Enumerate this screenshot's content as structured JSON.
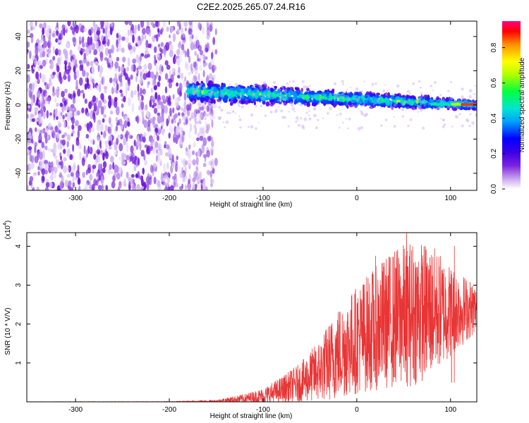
{
  "title": "C2E2.2025.265.07.24.R16",
  "chart_data": [
    {
      "type": "heatmap",
      "title": "C2E2.2025.265.07.24.R16",
      "xlabel": "Height of straight line (km)",
      "ylabel": "Frequency (Hz)",
      "xlim": [
        -352,
        128
      ],
      "ylim": [
        -50,
        49
      ],
      "xticks": [
        -300,
        -200,
        -100,
        0,
        100
      ],
      "yticks": [
        -40,
        -20,
        0,
        20,
        40
      ],
      "noise_region_end": -160,
      "signal_band": {
        "x_start": -180,
        "x_end": 128,
        "freq_center_start": 8,
        "freq_center_end": 0
      },
      "colorbar": {
        "label": "Normalized spectral amplitude",
        "range": [
          0,
          0.95
        ],
        "ticks": [
          0.0,
          0.2,
          0.4,
          0.6,
          0.8
        ],
        "tick_labels": [
          "0.0",
          "0.2",
          "0.4",
          "0.6",
          "0.8"
        ],
        "colormap": [
          "#ffffff",
          "#c9a7ee",
          "#7b22e0",
          "#3a00e6",
          "#0000ff",
          "#00a0ff",
          "#00e5d0",
          "#00ff40",
          "#b0ff00",
          "#ffff00",
          "#ff9000",
          "#ff0000",
          "#ff0080"
        ]
      }
    },
    {
      "type": "line",
      "title": "",
      "xlabel": "Height of straight line (km)",
      "ylabel": "SNR (10 * V/V)",
      "scale_label": "(x10",
      "scale_exponent": "4",
      "xlim": [
        -352,
        128
      ],
      "ylim": [
        0,
        4.35
      ],
      "xticks": [
        -300,
        -200,
        -100,
        0,
        100
      ],
      "yticks": [
        1,
        2,
        3,
        4
      ],
      "color": "#e83535",
      "envelope": {
        "x": [
          -352,
          -200,
          -150,
          -120,
          -100,
          -80,
          -60,
          -40,
          -20,
          0,
          20,
          40,
          60,
          80,
          100,
          128
        ],
        "mean": [
          0.0,
          0.0,
          0.02,
          0.08,
          0.15,
          0.3,
          0.5,
          0.8,
          1.25,
          1.6,
          1.9,
          2.15,
          2.3,
          2.35,
          2.35,
          2.4
        ],
        "amp": [
          0.005,
          0.01,
          0.03,
          0.12,
          0.2,
          0.35,
          0.5,
          0.8,
          1.2,
          1.4,
          1.6,
          1.8,
          1.9,
          1.7,
          1.2,
          0.6
        ]
      },
      "peaks": [
        {
          "x": 53,
          "y": 4.35
        },
        {
          "x": 20,
          "y": 3.75
        },
        {
          "x": 104,
          "y": 4.0
        },
        {
          "x": 101,
          "y": 0.5
        }
      ]
    }
  ]
}
